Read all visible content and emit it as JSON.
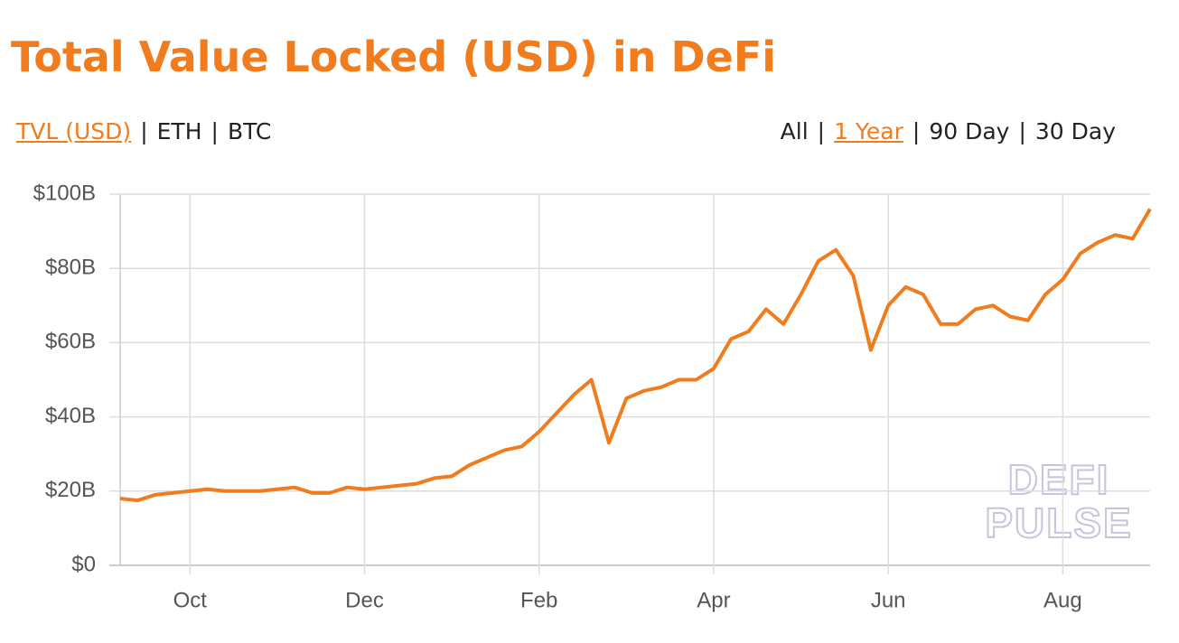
{
  "chart_data": {
    "type": "line",
    "title": "Total Value Locked (USD) in DeFi",
    "controls": {
      "metrics": [
        "TVL (USD)",
        "ETH",
        "BTC"
      ],
      "active_metric": 0,
      "ranges": [
        "All",
        "1 Year",
        "90 Day",
        "30 Day"
      ],
      "active_range": 1,
      "separator": "|"
    },
    "watermark": [
      "DEFI",
      "PULSE"
    ],
    "color": "#f07c1e",
    "grid": true,
    "categories": [
      null,
      null,
      null,
      null,
      "Oct",
      null,
      null,
      null,
      null,
      null,
      null,
      null,
      null,
      null,
      "Dec",
      null,
      null,
      null,
      null,
      null,
      null,
      null,
      null,
      null,
      "Feb",
      null,
      null,
      null,
      null,
      null,
      null,
      null,
      null,
      null,
      "Apr",
      null,
      null,
      null,
      null,
      null,
      null,
      null,
      null,
      null,
      "Jun",
      null,
      null,
      null,
      null,
      null,
      null,
      null,
      null,
      null,
      "Aug",
      null,
      null,
      null,
      null,
      null
    ],
    "values": [
      18,
      17.5,
      19,
      19.5,
      20,
      20.5,
      20,
      20,
      20,
      20.5,
      21,
      19.5,
      19.5,
      21,
      20.5,
      21,
      21.5,
      22,
      23.5,
      24,
      27,
      29,
      31,
      32,
      36,
      41,
      46,
      50,
      33,
      45,
      47,
      48,
      50,
      50,
      53,
      61,
      63,
      69,
      65,
      73,
      82,
      85,
      78,
      58,
      70,
      75,
      73,
      65,
      65,
      69,
      70,
      67,
      66,
      73,
      77,
      84,
      87,
      89,
      88,
      96
    ],
    "ylim": [
      0,
      100
    ],
    "yticks": [
      {
        "value": 0,
        "label": "$0"
      },
      {
        "value": 20,
        "label": "$20B"
      },
      {
        "value": 40,
        "label": "$40B"
      },
      {
        "value": 60,
        "label": "$60B"
      },
      {
        "value": 80,
        "label": "$80B"
      },
      {
        "value": 100,
        "label": "$100B"
      }
    ]
  }
}
